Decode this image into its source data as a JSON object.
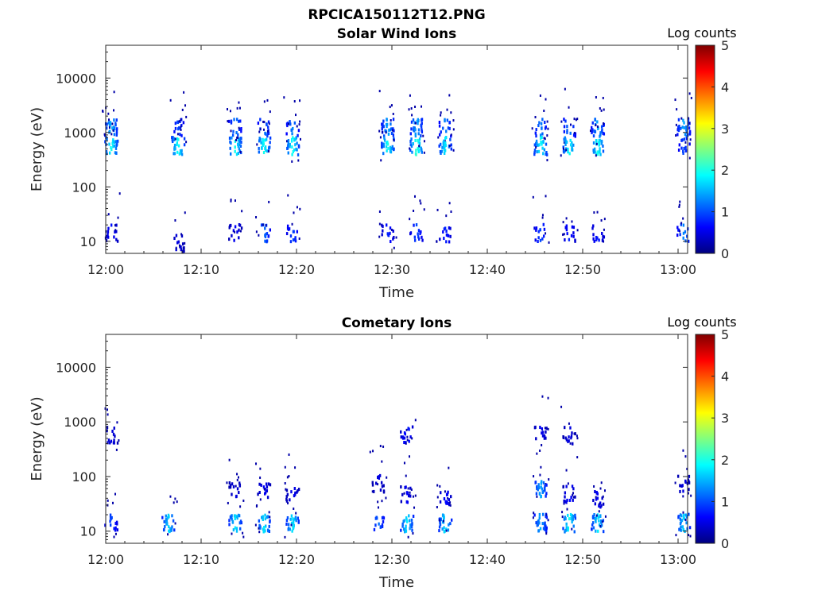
{
  "figure_title": "RPCICA150112T12.PNG",
  "colorbar_colors": [
    "#000080",
    "#0000ff",
    "#0080ff",
    "#00ffff",
    "#80ff80",
    "#ffff00",
    "#ff8000",
    "#ff0000",
    "#800000"
  ],
  "chart_data": [
    {
      "type": "heatmap",
      "title": "Solar Wind Ions",
      "xlabel": "Time",
      "ylabel": "Energy (eV)",
      "y_scale": "log",
      "xlim": [
        "12:00",
        "13:01"
      ],
      "ylim": [
        6,
        40000
      ],
      "x_ticks": [
        "12:00",
        "12:10",
        "12:20",
        "12:30",
        "12:40",
        "12:50",
        "13:00"
      ],
      "y_ticks": [
        "10",
        "100",
        "1000",
        "10000"
      ],
      "colorbar": {
        "label": "Log counts",
        "range": [
          0,
          5
        ],
        "ticks": [
          "0",
          "1",
          "2",
          "3",
          "4",
          "5"
        ]
      },
      "bursts": [
        {
          "time": "12:00",
          "clusters": [
            {
              "energy": 1300,
              "log_counts": 1.6
            },
            {
              "energy": 600,
              "log_counts": 2.0
            },
            {
              "energy": 15,
              "log_counts": 0.7
            }
          ]
        },
        {
          "time": "12:07",
          "clusters": [
            {
              "energy": 1300,
              "log_counts": 1.0
            },
            {
              "energy": 600,
              "log_counts": 2.0
            },
            {
              "energy": 10,
              "log_counts": 0.5
            }
          ]
        },
        {
          "time": "12:13",
          "clusters": [
            {
              "energy": 1300,
              "log_counts": 1.3
            },
            {
              "energy": 600,
              "log_counts": 2.0
            },
            {
              "energy": 15,
              "log_counts": 0.6
            }
          ]
        },
        {
          "time": "12:16",
          "clusters": [
            {
              "energy": 1300,
              "log_counts": 1.3
            },
            {
              "energy": 600,
              "log_counts": 2.0
            },
            {
              "energy": 15,
              "log_counts": 1.2
            }
          ]
        },
        {
          "time": "12:19",
          "clusters": [
            {
              "energy": 1300,
              "log_counts": 1.3
            },
            {
              "energy": 600,
              "log_counts": 2.0
            },
            {
              "energy": 15,
              "log_counts": 1.0
            }
          ]
        },
        {
          "time": "12:29",
          "clusters": [
            {
              "energy": 1300,
              "log_counts": 1.5
            },
            {
              "energy": 600,
              "log_counts": 2.0
            },
            {
              "energy": 15,
              "log_counts": 0.8
            }
          ]
        },
        {
          "time": "12:32",
          "clusters": [
            {
              "energy": 1300,
              "log_counts": 1.5
            },
            {
              "energy": 600,
              "log_counts": 2.2
            },
            {
              "energy": 15,
              "log_counts": 1.0
            }
          ]
        },
        {
          "time": "12:35",
          "clusters": [
            {
              "energy": 1300,
              "log_counts": 1.3
            },
            {
              "energy": 600,
              "log_counts": 1.8
            },
            {
              "energy": 15,
              "log_counts": 0.8
            }
          ]
        },
        {
          "time": "12:45",
          "clusters": [
            {
              "energy": 1300,
              "log_counts": 1.3
            },
            {
              "energy": 600,
              "log_counts": 2.0
            },
            {
              "energy": 15,
              "log_counts": 1.0
            }
          ]
        },
        {
          "time": "12:48",
          "clusters": [
            {
              "energy": 1300,
              "log_counts": 1.3
            },
            {
              "energy": 600,
              "log_counts": 2.0
            },
            {
              "energy": 15,
              "log_counts": 0.8
            }
          ]
        },
        {
          "time": "12:51",
          "clusters": [
            {
              "energy": 1300,
              "log_counts": 1.5
            },
            {
              "energy": 600,
              "log_counts": 2.0
            },
            {
              "energy": 15,
              "log_counts": 0.8
            }
          ]
        },
        {
          "time": "13:00",
          "clusters": [
            {
              "energy": 1300,
              "log_counts": 1.5
            },
            {
              "energy": 600,
              "log_counts": 1.0
            },
            {
              "energy": 15,
              "log_counts": 1.3
            }
          ]
        }
      ]
    },
    {
      "type": "heatmap",
      "title": "Cometary Ions",
      "xlabel": "Time",
      "ylabel": "Energy (eV)",
      "y_scale": "log",
      "xlim": [
        "12:00",
        "13:01"
      ],
      "ylim": [
        6,
        40000
      ],
      "x_ticks": [
        "12:00",
        "12:10",
        "12:20",
        "12:30",
        "12:40",
        "12:50",
        "13:00"
      ],
      "y_ticks": [
        "10",
        "100",
        "1000",
        "10000"
      ],
      "colorbar": {
        "label": "Log counts",
        "range": [
          0,
          5
        ],
        "ticks": [
          "0",
          "1",
          "2",
          "3",
          "4",
          "5"
        ]
      },
      "bursts": [
        {
          "time": "12:00",
          "clusters": [
            {
              "energy": 15,
              "log_counts": 1.0
            },
            {
              "energy": 600,
              "log_counts": 0.5
            }
          ]
        },
        {
          "time": "12:06",
          "clusters": [
            {
              "energy": 15,
              "log_counts": 1.7
            }
          ]
        },
        {
          "time": "12:13",
          "clusters": [
            {
              "energy": 15,
              "log_counts": 1.8
            },
            {
              "energy": 60,
              "log_counts": 0.5
            }
          ]
        },
        {
          "time": "12:16",
          "clusters": [
            {
              "energy": 15,
              "log_counts": 1.8
            },
            {
              "energy": 60,
              "log_counts": 0.6
            }
          ]
        },
        {
          "time": "12:19",
          "clusters": [
            {
              "energy": 15,
              "log_counts": 1.8
            },
            {
              "energy": 50,
              "log_counts": 0.6
            }
          ]
        },
        {
          "time": "12:28",
          "clusters": [
            {
              "energy": 15,
              "log_counts": 1.2
            },
            {
              "energy": 80,
              "log_counts": 0.5
            }
          ]
        },
        {
          "time": "12:31",
          "clusters": [
            {
              "energy": 15,
              "log_counts": 1.8
            },
            {
              "energy": 600,
              "log_counts": 0.8
            },
            {
              "energy": 50,
              "log_counts": 0.6
            }
          ]
        },
        {
          "time": "12:35",
          "clusters": [
            {
              "energy": 15,
              "log_counts": 1.8
            },
            {
              "energy": 40,
              "log_counts": 0.7
            }
          ]
        },
        {
          "time": "12:45",
          "clusters": [
            {
              "energy": 15,
              "log_counts": 1.5
            },
            {
              "energy": 600,
              "log_counts": 0.6
            },
            {
              "energy": 60,
              "log_counts": 1.5
            }
          ]
        },
        {
          "time": "12:48",
          "clusters": [
            {
              "energy": 15,
              "log_counts": 2.0
            },
            {
              "energy": 600,
              "log_counts": 0.5
            },
            {
              "energy": 50,
              "log_counts": 0.7
            }
          ]
        },
        {
          "time": "12:51",
          "clusters": [
            {
              "energy": 15,
              "log_counts": 1.8
            },
            {
              "energy": 40,
              "log_counts": 0.6
            }
          ]
        },
        {
          "time": "13:00",
          "clusters": [
            {
              "energy": 15,
              "log_counts": 1.7
            },
            {
              "energy": 80,
              "log_counts": 0.5
            }
          ]
        }
      ]
    }
  ]
}
